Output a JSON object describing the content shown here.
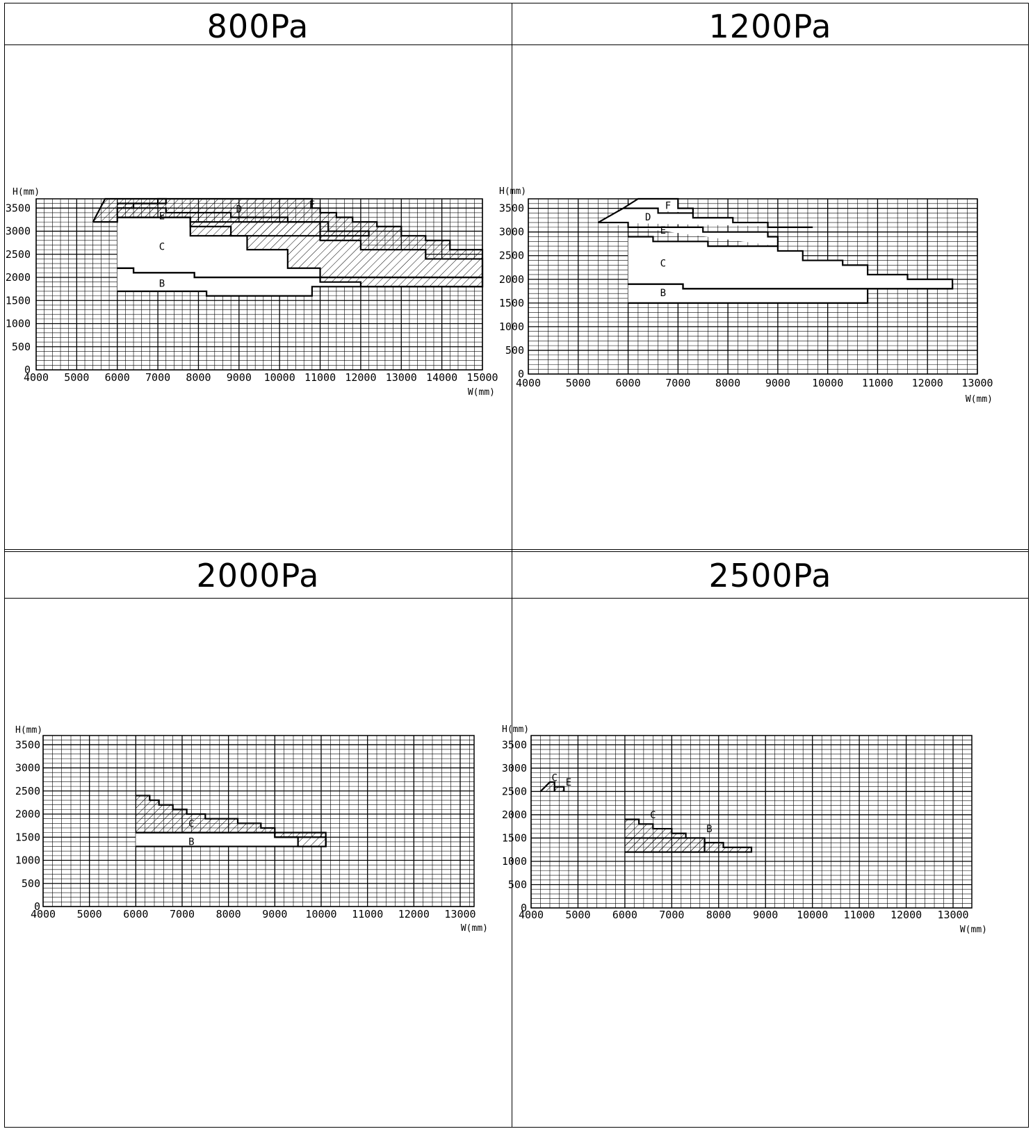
{
  "panels": [
    {
      "title": "800Pa"
    },
    {
      "title": "1200Pa"
    },
    {
      "title": "2000Pa"
    },
    {
      "title": "2500Pa"
    }
  ],
  "chart_data": [
    {
      "type": "area",
      "title": "800Pa",
      "ylabel": "H(mm)",
      "xlabel": "W(mm)",
      "xlim": [
        4000,
        15000
      ],
      "ylim": [
        0,
        3700
      ],
      "xticks": [
        "4000",
        "5000",
        "6000",
        "7000",
        "8000",
        "9000",
        "10000",
        "11000",
        "12000",
        "13000",
        "14000",
        "15000"
      ],
      "yticks": [
        "0",
        "500",
        "1000",
        "1500",
        "2000",
        "2500",
        "3000",
        "3500"
      ],
      "grid": true,
      "regions": [
        {
          "name": "B",
          "hatched": false,
          "label_at": [
            7100,
            1870
          ],
          "outline": [
            [
              6000,
              2200
            ],
            [
              6400,
              2200
            ],
            [
              6400,
              2100
            ],
            [
              7900,
              2100
            ],
            [
              7900,
              2000
            ],
            [
              15000,
              2000
            ],
            [
              15000,
              1800
            ],
            [
              10800,
              1800
            ],
            [
              10800,
              1600
            ],
            [
              8200,
              1600
            ],
            [
              8200,
              1700
            ],
            [
              6000,
              1700
            ]
          ]
        },
        {
          "name": "C",
          "hatched": false,
          "label_at": [
            7100,
            2670
          ],
          "outline": [
            [
              6000,
              3300
            ],
            [
              7800,
              3300
            ],
            [
              7800,
              3200
            ],
            [
              11000,
              3200
            ],
            [
              11000,
              2800
            ],
            [
              12000,
              2800
            ],
            [
              12000,
              2600
            ],
            [
              13600,
              2600
            ],
            [
              13600,
              2400
            ],
            [
              15000,
              2400
            ],
            [
              15000,
              2000
            ],
            [
              7900,
              2000
            ],
            [
              7900,
              2100
            ],
            [
              6400,
              2100
            ],
            [
              6400,
              2200
            ],
            [
              6000,
              2200
            ]
          ]
        },
        {
          "name": "E",
          "hatched": true,
          "label_at": [
            7100,
            3330
          ],
          "outline": [
            [
              6000,
              3500
            ],
            [
              7200,
              3500
            ],
            [
              7200,
              3400
            ],
            [
              8800,
              3400
            ],
            [
              8800,
              3300
            ],
            [
              10200,
              3300
            ],
            [
              10200,
              3200
            ],
            [
              11200,
              3200
            ],
            [
              11200,
              3000
            ],
            [
              12200,
              3000
            ],
            [
              12200,
              2900
            ],
            [
              7800,
              2900
            ],
            [
              7800,
              3300
            ],
            [
              6000,
              3300
            ]
          ]
        },
        {
          "name": "D",
          "hatched": true,
          "label_at": [
            9000,
            3480
          ],
          "outline": [
            [
              6000,
              3600
            ],
            [
              7000,
              3600
            ],
            [
              7000,
              3700
            ],
            [
              10800,
              3700
            ],
            [
              10800,
              3500
            ],
            [
              11000,
              3500
            ],
            [
              11000,
              3400
            ],
            [
              11400,
              3400
            ],
            [
              11400,
              3300
            ],
            [
              11800,
              3300
            ],
            [
              11800,
              3200
            ],
            [
              12400,
              3200
            ],
            [
              12400,
              3100
            ],
            [
              13000,
              3100
            ],
            [
              13000,
              2900
            ],
            [
              13600,
              2900
            ],
            [
              13600,
              2800
            ],
            [
              14200,
              2800
            ],
            [
              14200,
              2600
            ],
            [
              15000,
              2600
            ],
            [
              15000,
              1800
            ],
            [
              12000,
              1800
            ],
            [
              12000,
              1900
            ],
            [
              11000,
              1900
            ],
            [
              11000,
              2200
            ],
            [
              10200,
              2200
            ],
            [
              10200,
              2600
            ],
            [
              9200,
              2600
            ],
            [
              9200,
              2900
            ],
            [
              8800,
              2900
            ],
            [
              8800,
              3100
            ],
            [
              7800,
              3100
            ],
            [
              7800,
              3300
            ],
            [
              6000,
              3300
            ]
          ]
        },
        {
          "name": "F",
          "hatched": true,
          "label_at": [
            10800,
            3580
          ],
          "outline": [
            [
              5400,
              3200
            ],
            [
              6000,
              3200
            ],
            [
              6000,
              3300
            ],
            [
              6000,
              3500
            ],
            [
              6400,
              3500
            ],
            [
              6400,
              3600
            ],
            [
              7200,
              3600
            ],
            [
              7200,
              3700
            ],
            [
              5700,
              3700
            ],
            [
              5400,
              3200
            ]
          ]
        }
      ]
    },
    {
      "type": "area",
      "title": "1200Pa",
      "ylabel": "H(mm)",
      "xlabel": "W(mm)",
      "xlim": [
        4000,
        13000
      ],
      "ylim": [
        0,
        3700
      ],
      "xticks": [
        "4000",
        "5000",
        "6000",
        "7000",
        "8000",
        "9000",
        "10000",
        "11000",
        "12000",
        "13000"
      ],
      "yticks": [
        "0",
        "500",
        "1000",
        "1500",
        "2000",
        "2500",
        "3000",
        "3500"
      ],
      "grid": true,
      "regions": [
        {
          "name": "B",
          "hatched": false,
          "label_at": [
            6700,
            1720
          ],
          "outline": [
            [
              6000,
              1900
            ],
            [
              7100,
              1900
            ],
            [
              7100,
              1800
            ],
            [
              12500,
              1800
            ],
            [
              12500,
              1900
            ],
            [
              12500,
              1800
            ],
            [
              10800,
              1800
            ],
            [
              10800,
              1500
            ],
            [
              6000,
              1500
            ]
          ]
        },
        {
          "name": "C",
          "hatched": false,
          "label_at": [
            6700,
            2340
          ],
          "outline": [
            [
              6000,
              2900
            ],
            [
              6500,
              2900
            ],
            [
              6500,
              2800
            ],
            [
              7600,
              2800
            ],
            [
              7600,
              2700
            ],
            [
              9000,
              2700
            ],
            [
              9000,
              2600
            ],
            [
              9500,
              2600
            ],
            [
              9500,
              2400
            ],
            [
              10300,
              2400
            ],
            [
              10300,
              2300
            ],
            [
              10800,
              2300
            ],
            [
              10800,
              2100
            ],
            [
              11600,
              2100
            ],
            [
              11600,
              2000
            ],
            [
              12500,
              2000
            ],
            [
              12500,
              1800
            ],
            [
              7100,
              1800
            ],
            [
              7100,
              1900
            ],
            [
              6000,
              1900
            ]
          ]
        },
        {
          "name": "E",
          "hatched": false,
          "label_at": [
            6700,
            3040
          ],
          "outline": [
            [
              5400,
              3200
            ],
            [
              6000,
              3200
            ],
            [
              6000,
              3100
            ],
            [
              7500,
              3100
            ],
            [
              7500,
              3000
            ],
            [
              8800,
              3000
            ],
            [
              8800,
              2900
            ],
            [
              9000,
              2900
            ],
            [
              9000,
              2700
            ]
          ]
        },
        {
          "name": "D",
          "hatched": false,
          "label_at": [
            6400,
            3320
          ],
          "outline": [
            [
              5400,
              3200
            ],
            [
              5900,
              3500
            ],
            [
              6600,
              3500
            ],
            [
              6600,
              3400
            ],
            [
              7300,
              3400
            ],
            [
              7300,
              3300
            ],
            [
              8100,
              3300
            ],
            [
              8100,
              3200
            ],
            [
              8800,
              3200
            ],
            [
              8800,
              3100
            ],
            [
              9700,
              3100
            ]
          ]
        },
        {
          "name": "F",
          "hatched": false,
          "label_at": [
            6800,
            3560
          ],
          "outline": [
            [
              5900,
              3500
            ],
            [
              6200,
              3700
            ],
            [
              7000,
              3700
            ],
            [
              7000,
              3500
            ],
            [
              7300,
              3500
            ],
            [
              7300,
              3400
            ]
          ]
        }
      ]
    },
    {
      "type": "area",
      "title": "2000Pa",
      "ylabel": "H(mm)",
      "xlabel": "W(mm)",
      "xlim": [
        4000,
        13300
      ],
      "ylim": [
        0,
        3700
      ],
      "xticks": [
        "4000",
        "5000",
        "6000",
        "7000",
        "8000",
        "9000",
        "10000",
        "11000",
        "12000",
        "13000"
      ],
      "yticks": [
        "0",
        "500",
        "1000",
        "1500",
        "2000",
        "2500",
        "3000",
        "3500"
      ],
      "grid": true,
      "regions": [
        {
          "name": "B",
          "hatched": false,
          "label_at": [
            7200,
            1410
          ],
          "outline": [
            [
              6000,
              1600
            ],
            [
              9000,
              1600
            ],
            [
              9000,
              1500
            ],
            [
              10100,
              1500
            ],
            [
              10100,
              1300
            ],
            [
              6000,
              1300
            ]
          ]
        },
        {
          "name": "C",
          "hatched": true,
          "label_at": [
            7200,
            1800
          ],
          "outline": [
            [
              6000,
              2400
            ],
            [
              6300,
              2400
            ],
            [
              6300,
              2300
            ],
            [
              6500,
              2300
            ],
            [
              6500,
              2200
            ],
            [
              6800,
              2200
            ],
            [
              6800,
              2100
            ],
            [
              7100,
              2100
            ],
            [
              7100,
              2000
            ],
            [
              7500,
              2000
            ],
            [
              7500,
              1900
            ],
            [
              8200,
              1900
            ],
            [
              8200,
              1800
            ],
            [
              8700,
              1800
            ],
            [
              8700,
              1700
            ],
            [
              9000,
              1700
            ],
            [
              9000,
              1600
            ],
            [
              10100,
              1600
            ],
            [
              10100,
              1300
            ],
            [
              9500,
              1300
            ],
            [
              9500,
              1500
            ],
            [
              9000,
              1500
            ],
            [
              9000,
              1600
            ],
            [
              6000,
              1600
            ]
          ]
        }
      ]
    },
    {
      "type": "area",
      "title": "2500Pa",
      "ylabel": "H(mm)",
      "xlabel": "W(mm)",
      "xlim": [
        4000,
        13400
      ],
      "ylim": [
        0,
        3700
      ],
      "xticks": [
        "4000",
        "5000",
        "6000",
        "7000",
        "8000",
        "9000",
        "10000",
        "11000",
        "12000",
        "13000"
      ],
      "yticks": [
        "0",
        "500",
        "1000",
        "1500",
        "2000",
        "2500",
        "3000",
        "3500"
      ],
      "grid": true,
      "regions": [
        {
          "name": "C",
          "hatched": true,
          "label_at": [
            4500,
            2800
          ],
          "outline": [
            [
              4200,
              2500
            ],
            [
              4400,
              2700
            ],
            [
              4500,
              2700
            ],
            [
              4500,
              2500
            ]
          ]
        },
        {
          "name": "E",
          "hatched": true,
          "label_at": [
            4800,
            2700
          ],
          "outline": [
            [
              4500,
              2500
            ],
            [
              4500,
              2600
            ],
            [
              4700,
              2600
            ],
            [
              4700,
              2500
            ]
          ]
        },
        {
          "name": "C",
          "hatched": true,
          "label_at": [
            6600,
            2000
          ],
          "outline": [
            [
              6000,
              1900
            ],
            [
              6300,
              1900
            ],
            [
              6300,
              1800
            ],
            [
              6600,
              1800
            ],
            [
              6600,
              1700
            ],
            [
              7000,
              1700
            ],
            [
              7000,
              1600
            ],
            [
              7300,
              1600
            ],
            [
              7300,
              1500
            ],
            [
              7700,
              1500
            ],
            [
              7700,
              1200
            ],
            [
              6000,
              1200
            ]
          ]
        },
        {
          "name": "B",
          "hatched": true,
          "label_at": [
            7800,
            1700
          ],
          "outline": [
            [
              6000,
              1500
            ],
            [
              7700,
              1500
            ],
            [
              7700,
              1400
            ],
            [
              8100,
              1400
            ],
            [
              8100,
              1300
            ],
            [
              8700,
              1300
            ],
            [
              8700,
              1200
            ],
            [
              6000,
              1200
            ]
          ]
        }
      ]
    }
  ]
}
